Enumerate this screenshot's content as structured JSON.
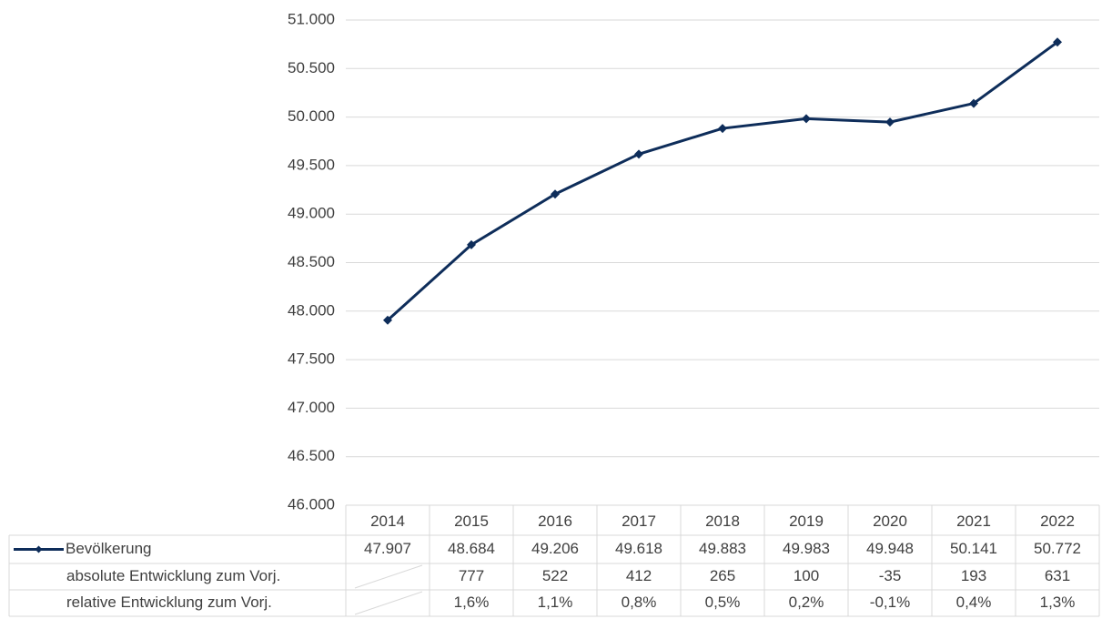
{
  "chart_data": {
    "type": "line",
    "categories": [
      "2014",
      "2015",
      "2016",
      "2017",
      "2018",
      "2019",
      "2020",
      "2021",
      "2022"
    ],
    "series": [
      {
        "name": "Bevölkerung",
        "color": "#0e2d5a",
        "values": [
          47907,
          48684,
          49206,
          49618,
          49883,
          49983,
          49948,
          50141,
          50772
        ],
        "value_labels": [
          "47.907",
          "48.684",
          "49.206",
          "49.618",
          "49.883",
          "49.983",
          "49.948",
          "50.141",
          "50.772"
        ]
      }
    ],
    "table_rows": [
      {
        "name": "absolute Entwicklung zum Vorj.",
        "values": [
          null,
          777,
          522,
          412,
          265,
          100,
          -35,
          193,
          631
        ]
      },
      {
        "name": "relative Entwicklung zum Vorj.",
        "values": [
          null,
          1.6,
          1.1,
          0.8,
          0.5,
          0.2,
          -0.1,
          0.4,
          1.3
        ],
        "value_labels": [
          null,
          "1,6%",
          "1,1%",
          "0,8%",
          "0,5%",
          "0,2%",
          "-0,1%",
          "0,4%",
          "1,3%"
        ]
      }
    ],
    "ylim": [
      46000,
      51000
    ],
    "yticks": [
      {
        "value": 46000,
        "label": "46.000"
      },
      {
        "value": 46500,
        "label": "46.500"
      },
      {
        "value": 47000,
        "label": "47.000"
      },
      {
        "value": 47500,
        "label": "47.500"
      },
      {
        "value": 48000,
        "label": "48.000"
      },
      {
        "value": 48500,
        "label": "48.500"
      },
      {
        "value": 49000,
        "label": "49.000"
      },
      {
        "value": 49500,
        "label": "49.500"
      },
      {
        "value": 50000,
        "label": "50.000"
      },
      {
        "value": 50500,
        "label": "50.500"
      },
      {
        "value": 51000,
        "label": "51.000"
      }
    ],
    "grid": true
  }
}
